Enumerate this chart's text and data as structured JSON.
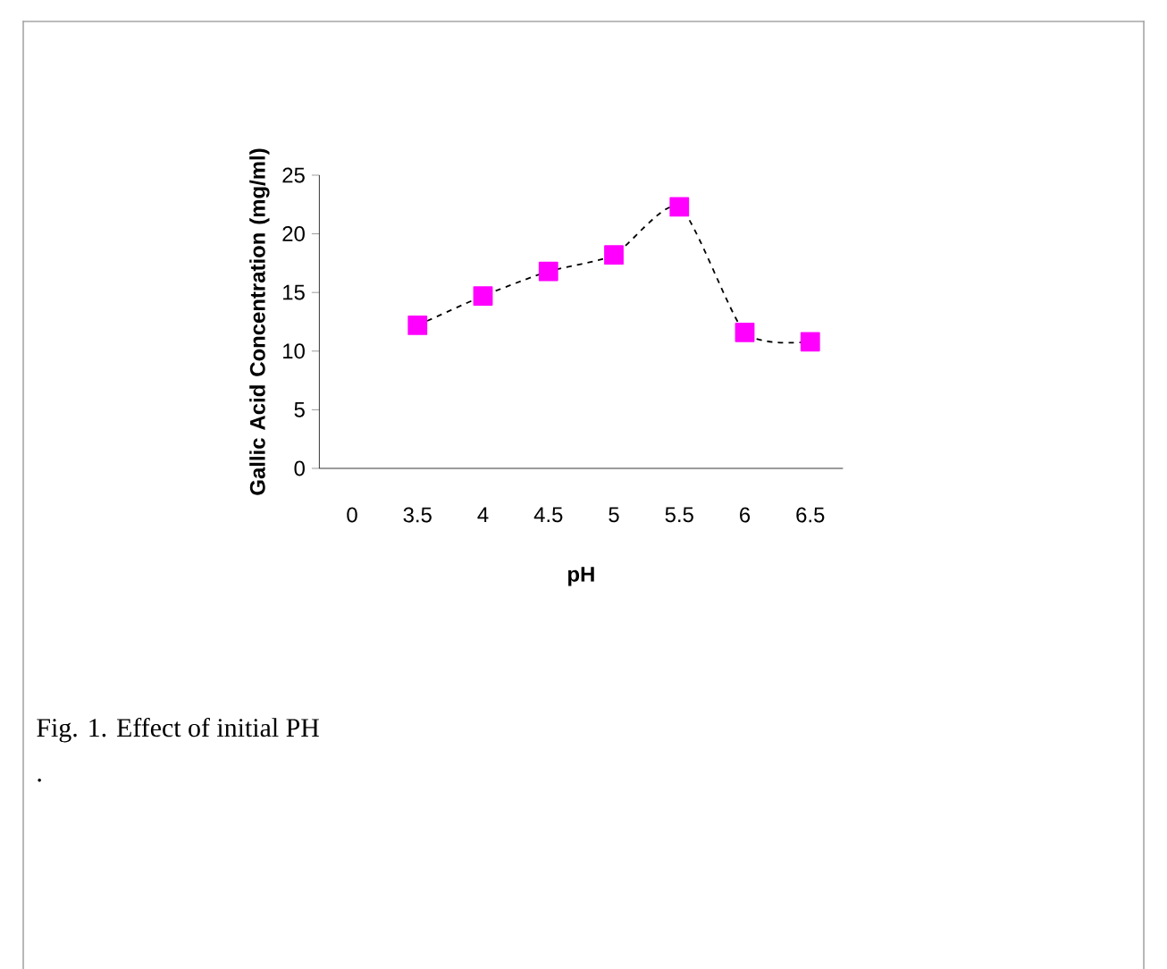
{
  "chart_data": {
    "type": "line",
    "xlabel": "pH",
    "ylabel": "Gallic Acid Concentration (mg/ml)",
    "categories": [
      "0",
      "3.5",
      "4",
      "4.5",
      "5",
      "5.5",
      "6",
      "6.5"
    ],
    "values": [
      null,
      12.2,
      14.7,
      16.8,
      18.2,
      22.3,
      11.6,
      10.8
    ],
    "color": "#ff00ff",
    "marker": "square",
    "line_style": "dashed",
    "ylim": [
      0,
      25
    ],
    "yticks": [
      0,
      5,
      10,
      15,
      20,
      25
    ],
    "annotations": [
      "Fig. 1.  Effect of initial PH",
      "."
    ]
  }
}
